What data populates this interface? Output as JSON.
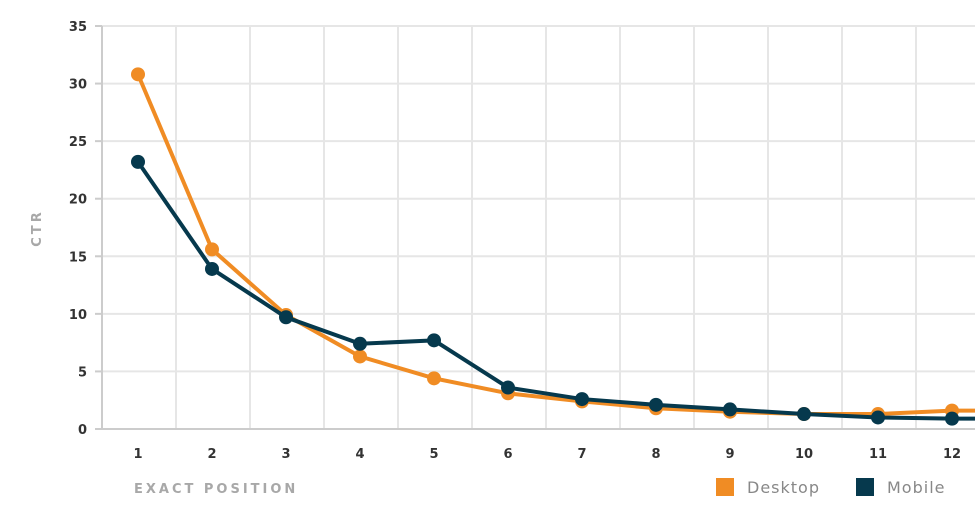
{
  "chart_data": {
    "type": "line",
    "xlabel": "EXACT POSITION",
    "ylabel": "CTR",
    "x": [
      1,
      2,
      3,
      4,
      5,
      6,
      7,
      8,
      9,
      10,
      11,
      12
    ],
    "ylim": [
      0,
      35
    ],
    "yticks": [
      0,
      5,
      10,
      15,
      20,
      25,
      30,
      35
    ],
    "grid": true,
    "legend_position": "bottom-right",
    "series": [
      {
        "name": "Desktop",
        "color": "#f08c24",
        "values": [
          30.8,
          15.6,
          9.9,
          6.3,
          4.4,
          3.1,
          2.4,
          1.8,
          1.5,
          1.3,
          1.3,
          1.6
        ]
      },
      {
        "name": "Mobile",
        "color": "#06394d",
        "values": [
          23.2,
          13.9,
          9.7,
          7.4,
          7.7,
          3.6,
          2.6,
          2.1,
          1.7,
          1.3,
          1.0,
          0.9
        ]
      }
    ]
  }
}
